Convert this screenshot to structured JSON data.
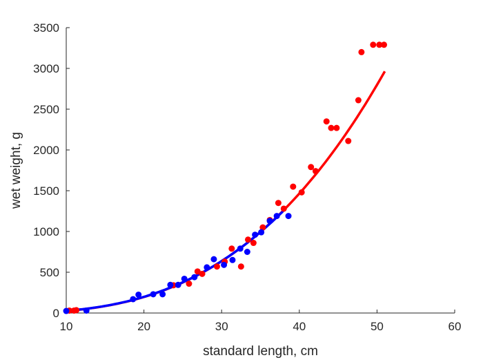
{
  "chart_data": {
    "type": "scatter",
    "title": "",
    "xlabel": "standard length, cm",
    "ylabel": "wet weight, g",
    "xlim": [
      10,
      60
    ],
    "ylim": [
      0,
      3500
    ],
    "xticks": [
      10,
      20,
      30,
      40,
      50,
      60
    ],
    "yticks": [
      0,
      500,
      1000,
      1500,
      2000,
      2500,
      3000,
      3500
    ],
    "grid": false,
    "legend": "none",
    "series": [
      {
        "color": "#ff0000",
        "points": [
          {
            "x": 10.4,
            "y": 30
          },
          {
            "x": 11.0,
            "y": 30
          },
          {
            "x": 11.3,
            "y": 35
          },
          {
            "x": 23.8,
            "y": 340
          },
          {
            "x": 25.8,
            "y": 360
          },
          {
            "x": 26.9,
            "y": 510
          },
          {
            "x": 27.5,
            "y": 480
          },
          {
            "x": 29.4,
            "y": 570
          },
          {
            "x": 30.4,
            "y": 630
          },
          {
            "x": 31.3,
            "y": 790
          },
          {
            "x": 32.5,
            "y": 570
          },
          {
            "x": 33.4,
            "y": 900
          },
          {
            "x": 34.1,
            "y": 860
          },
          {
            "x": 35.3,
            "y": 1050
          },
          {
            "x": 36.2,
            "y": 1140
          },
          {
            "x": 37.3,
            "y": 1350
          },
          {
            "x": 38.0,
            "y": 1280
          },
          {
            "x": 39.2,
            "y": 1550
          },
          {
            "x": 40.3,
            "y": 1480
          },
          {
            "x": 41.5,
            "y": 1790
          },
          {
            "x": 42.1,
            "y": 1740
          },
          {
            "x": 43.5,
            "y": 2350
          },
          {
            "x": 44.1,
            "y": 2270
          },
          {
            "x": 44.8,
            "y": 2270
          },
          {
            "x": 46.3,
            "y": 2110
          },
          {
            "x": 47.6,
            "y": 2610
          },
          {
            "x": 48.0,
            "y": 3200
          },
          {
            "x": 49.5,
            "y": 3290
          },
          {
            "x": 50.3,
            "y": 3290
          },
          {
            "x": 50.9,
            "y": 3290
          }
        ],
        "fit": {
          "model": "power",
          "a": 0.0331,
          "b": 2.9,
          "x_range": [
            10,
            51
          ]
        }
      },
      {
        "color": "#0000ff",
        "points": [
          {
            "x": 10.0,
            "y": 25
          },
          {
            "x": 12.6,
            "y": 30
          },
          {
            "x": 18.6,
            "y": 170
          },
          {
            "x": 19.3,
            "y": 225
          },
          {
            "x": 21.2,
            "y": 230
          },
          {
            "x": 22.4,
            "y": 230
          },
          {
            "x": 23.4,
            "y": 345
          },
          {
            "x": 24.4,
            "y": 345
          },
          {
            "x": 25.2,
            "y": 420
          },
          {
            "x": 26.5,
            "y": 440
          },
          {
            "x": 28.1,
            "y": 560
          },
          {
            "x": 29.0,
            "y": 660
          },
          {
            "x": 30.3,
            "y": 590
          },
          {
            "x": 31.4,
            "y": 650
          },
          {
            "x": 32.4,
            "y": 790
          },
          {
            "x": 33.3,
            "y": 750
          },
          {
            "x": 34.3,
            "y": 960
          },
          {
            "x": 35.1,
            "y": 990
          },
          {
            "x": 36.2,
            "y": 1130
          },
          {
            "x": 37.1,
            "y": 1190
          },
          {
            "x": 38.6,
            "y": 1190
          }
        ],
        "fit": {
          "model": "power",
          "a": 0.0355,
          "b": 2.88,
          "x_range": [
            10,
            38.2
          ]
        }
      }
    ]
  }
}
